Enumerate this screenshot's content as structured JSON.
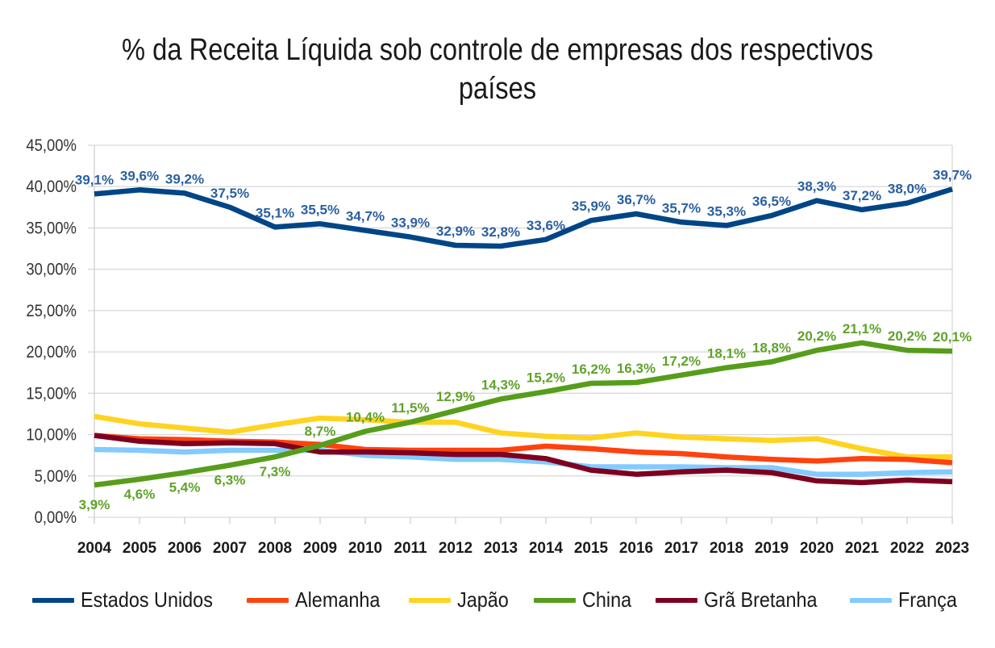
{
  "chart_data": {
    "type": "line",
    "title": "% da Receita Líquida sob controle de empresas dos respectivos países",
    "title_lines": [
      "% da Receita Líquida sob controle de empresas dos respectivos",
      "países"
    ],
    "xlabel": "",
    "ylabel": "",
    "ylim": [
      0,
      45
    ],
    "grid": true,
    "legend_position": "bottom",
    "y_ticks": [
      0,
      5,
      10,
      15,
      20,
      25,
      30,
      35,
      40,
      45
    ],
    "y_tick_labels": [
      "0,00%",
      "5,00%",
      "10,00%",
      "15,00%",
      "20,00%",
      "25,00%",
      "30,00%",
      "35,00%",
      "40,00%",
      "45,00%"
    ],
    "categories": [
      "2004",
      "2005",
      "2006",
      "2007",
      "2008",
      "2009",
      "2010",
      "2011",
      "2012",
      "2013",
      "2014",
      "2015",
      "2016",
      "2017",
      "2018",
      "2019",
      "2020",
      "2021",
      "2022",
      "2023"
    ],
    "series": [
      {
        "name": "Estados Unidos",
        "color": "#004586",
        "values": [
          39.1,
          39.6,
          39.2,
          37.5,
          35.1,
          35.5,
          34.7,
          33.9,
          32.9,
          32.8,
          33.6,
          35.9,
          36.7,
          35.7,
          35.3,
          36.5,
          38.3,
          37.2,
          38.0,
          39.7
        ],
        "data_labels": [
          "39,1%",
          "39,6%",
          "39,2%",
          "37,5%",
          "35,1%",
          "35,5%",
          "34,7%",
          "33,9%",
          "32,9%",
          "32,8%",
          "33,6%",
          "35,9%",
          "36,7%",
          "35,7%",
          "35,3%",
          "36,5%",
          "38,3%",
          "37,2%",
          "38,0%",
          "39,7%"
        ],
        "label_color": "#2a5fa0"
      },
      {
        "name": "Alemanha",
        "color": "#ff420e",
        "values": [
          9.9,
          9.5,
          9.4,
          9.2,
          9.1,
          8.8,
          8.2,
          8.1,
          8.1,
          8.1,
          8.6,
          8.3,
          7.9,
          7.7,
          7.3,
          7.0,
          6.8,
          7.1,
          7.0,
          6.6
        ]
      },
      {
        "name": "Japão",
        "color": "#ffd320",
        "values": [
          12.2,
          11.3,
          10.8,
          10.3,
          11.2,
          12.0,
          11.8,
          11.5,
          11.5,
          10.2,
          9.8,
          9.6,
          10.2,
          9.7,
          9.5,
          9.3,
          9.5,
          8.3,
          7.3,
          7.3
        ]
      },
      {
        "name": "China",
        "color": "#579d1c",
        "values": [
          3.9,
          4.6,
          5.4,
          6.3,
          7.3,
          8.7,
          10.4,
          11.5,
          12.9,
          14.3,
          15.2,
          16.2,
          16.3,
          17.2,
          18.1,
          18.8,
          20.2,
          21.1,
          20.2,
          20.1
        ],
        "data_labels": [
          "3,9%",
          "4,6%",
          "5,4%",
          "6,3%",
          "7,3%",
          "8,7%",
          "10,4%",
          "11,5%",
          "12,9%",
          "14,3%",
          "15,2%",
          "16,2%",
          "16,3%",
          "17,2%",
          "18,1%",
          "18,8%",
          "20,2%",
          "21,1%",
          "20,2%",
          "20,1%"
        ],
        "label_color": "#5fa22a"
      },
      {
        "name": "Grã Bretanha",
        "color": "#7e0021",
        "values": [
          9.9,
          9.2,
          8.9,
          9.0,
          8.9,
          7.9,
          7.9,
          7.8,
          7.6,
          7.6,
          7.1,
          5.7,
          5.2,
          5.5,
          5.7,
          5.4,
          4.4,
          4.2,
          4.5,
          4.3
        ]
      },
      {
        "name": "França",
        "color": "#83caff",
        "values": [
          8.2,
          8.1,
          7.9,
          8.1,
          8.1,
          8.1,
          7.5,
          7.3,
          7.0,
          7.0,
          6.7,
          6.1,
          6.1,
          6.1,
          6.0,
          6.0,
          5.2,
          5.2,
          5.4,
          5.5
        ]
      }
    ]
  }
}
